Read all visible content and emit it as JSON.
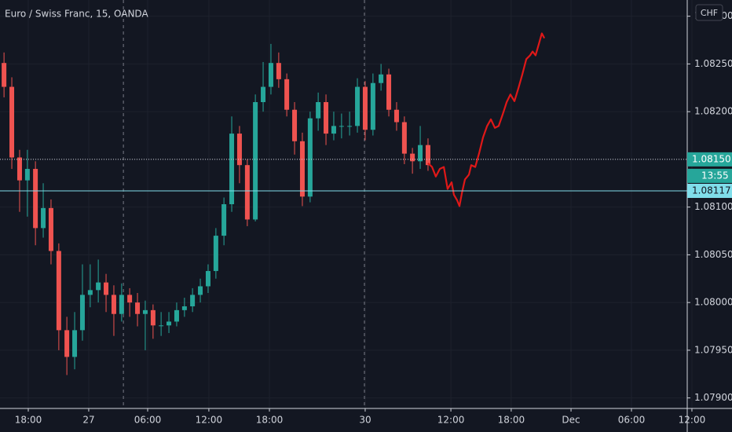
{
  "chart_data": {
    "type": "candlestick",
    "title": "Euro / Swiss Franc, 15, OANDA",
    "currency": "CHF",
    "countdown": "13:55",
    "up_color": "#26a69a",
    "down_color": "#ef5350",
    "grid": true,
    "xlim": [
      0,
      291.25
    ],
    "ylim": [
      1.07889,
      1.08317
    ],
    "yticks": [
      {
        "value": 1.079,
        "label": "1.07900"
      },
      {
        "value": 1.0795,
        "label": "1.07950"
      },
      {
        "value": 1.08,
        "label": "1.08000"
      },
      {
        "value": 1.0805,
        "label": "1.08050"
      },
      {
        "value": 1.081,
        "label": "1.08100"
      },
      {
        "value": 1.0815,
        "label": "1.08150"
      },
      {
        "value": 1.082,
        "label": "1.08200"
      },
      {
        "value": 1.0825,
        "label": "1.08250"
      },
      {
        "value": 1.083,
        "label": "1.08300"
      }
    ],
    "xticks": [
      {
        "value": 11.25,
        "label": "18:00"
      },
      {
        "value": 35.3,
        "label": "27"
      },
      {
        "value": 58.75,
        "label": "06:00"
      },
      {
        "value": 83.1,
        "label": "12:00"
      },
      {
        "value": 107.2,
        "label": "18:00"
      },
      {
        "value": 145.3,
        "label": "30"
      },
      {
        "value": 179.4,
        "label": "12:00"
      },
      {
        "value": 203.4,
        "label": "18:00"
      },
      {
        "value": 227.2,
        "label": "Dec"
      },
      {
        "value": 251.25,
        "label": "06:00"
      },
      {
        "value": 275.3,
        "label": "12:00"
      }
    ],
    "session_breaks": [
      49.1,
      145
    ],
    "price_lines": [
      {
        "value": 1.0815,
        "label": "1.08150",
        "color": "#26a69a",
        "style": "dotted"
      },
      {
        "value": 1.08117,
        "label": "1.08117",
        "color": "#80deea",
        "style": "solid"
      }
    ],
    "candles": {
      "x": [
        1.6,
        4.7,
        7.8,
        10.9,
        14.1,
        17.2,
        20.3,
        23.4,
        26.6,
        29.7,
        32.8,
        35.9,
        39.1,
        42.2,
        45.3,
        48.4,
        51.6,
        54.7,
        57.8,
        60.9,
        64.1,
        67.2,
        70.3,
        73.4,
        76.6,
        79.7,
        82.8,
        85.9,
        89.1,
        92.2,
        95.3,
        98.4,
        101.6,
        104.7,
        107.8,
        110.9,
        114.1,
        117.2,
        120.3,
        123.4,
        126.6,
        129.7,
        132.8,
        135.9,
        139.1,
        142.2,
        145.3,
        148.4,
        151.6,
        154.7,
        157.8,
        160.9,
        164.1,
        167.2,
        170.3
      ],
      "open": [
        1.08251,
        1.08226,
        1.08152,
        1.08128,
        1.0814,
        1.08078,
        1.08099,
        1.08054,
        1.07971,
        1.07943,
        1.07971,
        1.08008,
        1.08013,
        1.08021,
        1.08008,
        1.07988,
        1.08008,
        1.08,
        1.07988,
        1.07992,
        1.07976,
        1.07976,
        1.0798,
        1.07992,
        1.07996,
        1.08008,
        1.08017,
        1.08033,
        1.0807,
        1.08103,
        1.08177,
        1.08144,
        1.08087,
        1.0821,
        1.08226,
        1.08251,
        1.08234,
        1.08202,
        1.08169,
        1.08111,
        1.08193,
        1.0821,
        1.08177,
        1.08185,
        1.08185,
        1.08185,
        1.08226,
        1.08181,
        1.0823,
        1.08239,
        1.08202,
        1.08189,
        1.08156,
        1.08148,
        1.08165
      ],
      "high": [
        1.08262,
        1.08236,
        1.0816,
        1.0816,
        1.08148,
        1.08125,
        1.08108,
        1.08062,
        1.07985,
        1.0799,
        1.0804,
        1.0804,
        1.08045,
        1.0803,
        1.08018,
        1.0802,
        1.08015,
        1.0801,
        1.08002,
        1.07998,
        1.0799,
        1.0799,
        1.08,
        1.08005,
        1.08015,
        1.08025,
        1.0804,
        1.08078,
        1.0811,
        1.08195,
        1.08185,
        1.0815,
        1.08218,
        1.08252,
        1.08271,
        1.08262,
        1.0824,
        1.0821,
        1.08178,
        1.082,
        1.0822,
        1.08218,
        1.082,
        1.08198,
        1.082,
        1.08235,
        1.08232,
        1.0824,
        1.0825,
        1.08245,
        1.0821,
        1.08195,
        1.08162,
        1.08185,
        1.08172
      ],
      "low": [
        1.08215,
        1.0814,
        1.08095,
        1.0809,
        1.0806,
        1.08068,
        1.0804,
        1.0795,
        1.07924,
        1.0793,
        1.0796,
        1.07995,
        1.08,
        1.0799,
        1.07965,
        1.0798,
        1.07985,
        1.07975,
        1.0795,
        1.07962,
        1.07965,
        1.07968,
        1.07975,
        1.07985,
        1.0799,
        1.08,
        1.0801,
        1.08025,
        1.0806,
        1.08095,
        1.08125,
        1.0808,
        1.08085,
        1.082,
        1.08218,
        1.08225,
        1.08195,
        1.08155,
        1.08101,
        1.08105,
        1.0818,
        1.08165,
        1.0817,
        1.08172,
        1.08175,
        1.08178,
        1.0817,
        1.08175,
        1.08222,
        1.08195,
        1.0818,
        1.08145,
        1.08135,
        1.0814,
        1.08138
      ],
      "close": [
        1.08226,
        1.08152,
        1.08128,
        1.0814,
        1.08078,
        1.08099,
        1.08054,
        1.07971,
        1.07943,
        1.07971,
        1.08008,
        1.08013,
        1.08021,
        1.08008,
        1.07988,
        1.08008,
        1.08,
        1.07988,
        1.07992,
        1.07976,
        1.07976,
        1.0798,
        1.07992,
        1.07996,
        1.08008,
        1.08017,
        1.08033,
        1.0807,
        1.08103,
        1.08177,
        1.08144,
        1.08087,
        1.0821,
        1.08226,
        1.08251,
        1.08234,
        1.08202,
        1.08169,
        1.08111,
        1.08193,
        1.0821,
        1.08177,
        1.08185,
        1.08185,
        1.08185,
        1.08226,
        1.08181,
        1.0823,
        1.08239,
        1.08202,
        1.08189,
        1.08156,
        1.08148,
        1.08165,
        1.08144
      ]
    },
    "forecast": {
      "color": "#e01818",
      "x": [
        170.3,
        171.9,
        173.4,
        175,
        176.6,
        178.1,
        179.7,
        180.6,
        181.9,
        182.8,
        183.8,
        185,
        186.6,
        187.5,
        189.1,
        190.6,
        192.2,
        193.8,
        195.3,
        196.9,
        198.4,
        200,
        201.6,
        203.1,
        204.7,
        206.3,
        207.8,
        209.4,
        210.9,
        211.9,
        213.1,
        214.4,
        215.6,
        216.6
      ],
      "values": [
        1.08146,
        1.08142,
        1.08132,
        1.0814,
        1.08142,
        1.08119,
        1.08126,
        1.08113,
        1.08107,
        1.08101,
        1.08115,
        1.08129,
        1.08134,
        1.08144,
        1.08142,
        1.08156,
        1.08173,
        1.08185,
        1.08192,
        1.08183,
        1.08185,
        1.08197,
        1.0821,
        1.08218,
        1.08211,
        1.08225,
        1.08239,
        1.08255,
        1.08259,
        1.08263,
        1.08259,
        1.08271,
        1.08282,
        1.08277
      ]
    }
  }
}
